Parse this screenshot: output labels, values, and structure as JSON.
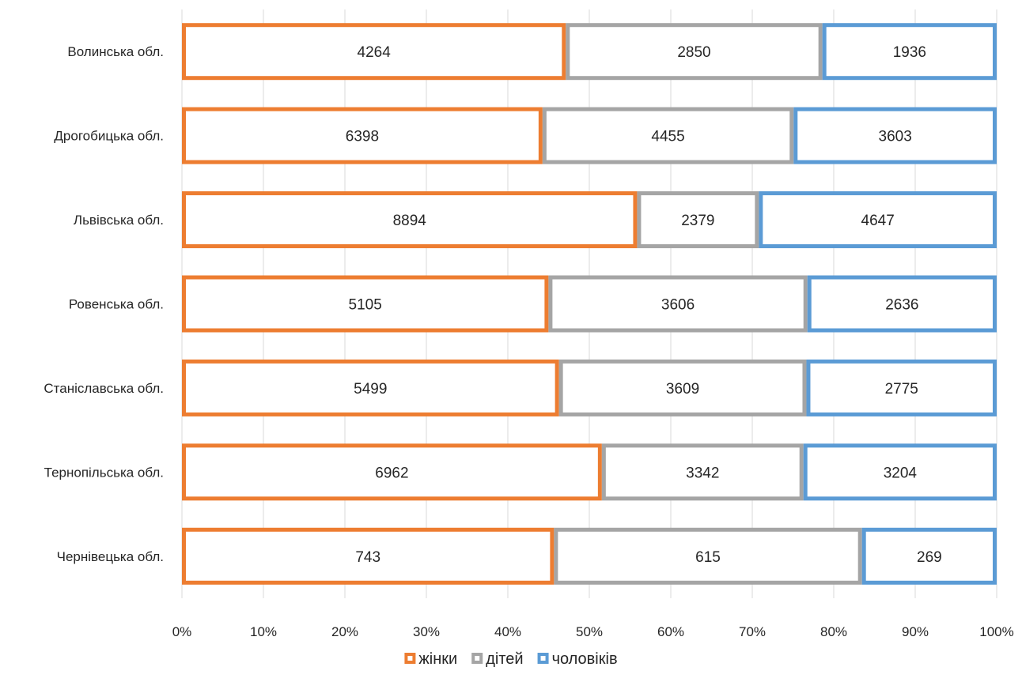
{
  "chart_data": {
    "type": "bar",
    "orientation": "horizontal",
    "stacking": "percent",
    "categories": [
      "Волинська обл.",
      "Дрогобицька обл.",
      "Львівська обл.",
      "Ровенська обл.",
      "Станіславська обл.",
      "Тернопільська обл.",
      "Чернівецька обл."
    ],
    "series": [
      {
        "name": "жінки",
        "color": "#ED7D31",
        "values": [
          4264,
          6398,
          8894,
          5105,
          5499,
          6962,
          743
        ]
      },
      {
        "name": "дітей",
        "color": "#A5A5A5",
        "values": [
          2850,
          4455,
          2379,
          3606,
          3609,
          3342,
          615
        ]
      },
      {
        "name": "чоловіків",
        "color": "#5B9BD5",
        "values": [
          1936,
          3603,
          4647,
          2636,
          2775,
          3204,
          269
        ]
      }
    ],
    "x_ticks": [
      "0%",
      "10%",
      "20%",
      "30%",
      "40%",
      "50%",
      "60%",
      "70%",
      "80%",
      "90%",
      "100%"
    ],
    "xlim": [
      0,
      1
    ],
    "grid": "vertical",
    "legend": "bottom",
    "bar_fill": "#FFFFFF",
    "grid_color": "#D9D9D9"
  }
}
